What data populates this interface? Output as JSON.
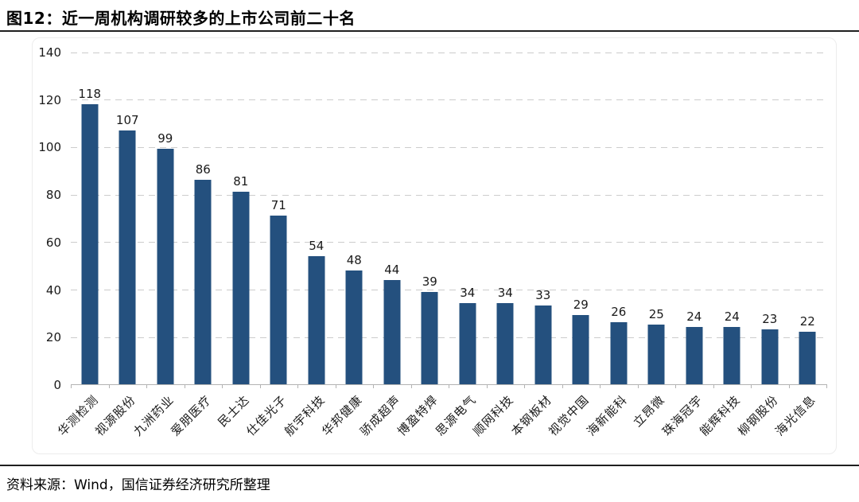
{
  "header": {
    "title": "图12：近一周机构调研较多的上市公司前二十名"
  },
  "footer": {
    "source": "资料来源：Wind，国信证券经济研究所整理"
  },
  "colors": {
    "bar": "#24507E",
    "gridline": "#cccccc",
    "axis_line": "#b3b3b3",
    "rule": "#1f1f1f",
    "text": "#1a1a1a"
  },
  "chart_data": {
    "type": "bar",
    "title": "近一周机构调研较多的上市公司前二十名",
    "categories": [
      "华测检测",
      "视源股份",
      "九洲药业",
      "爱朋医疗",
      "民士达",
      "仕佳光子",
      "航宇科技",
      "华邦健康",
      "骄成超声",
      "博盈特焊",
      "思源电气",
      "顺网科技",
      "本钢板材",
      "视觉中国",
      "海新能科",
      "立昂微",
      "珠海冠宇",
      "能辉科技",
      "柳钢股份",
      "海光信息"
    ],
    "values": [
      118,
      107,
      99,
      86,
      81,
      71,
      54,
      48,
      44,
      39,
      34,
      34,
      33,
      29,
      26,
      25,
      24,
      24,
      23,
      22
    ],
    "value_labels_shown": true,
    "xlabel": "",
    "ylabel": "",
    "ylim": [
      0,
      140
    ],
    "yticks": [
      0,
      20,
      40,
      60,
      80,
      100,
      120,
      140
    ],
    "grid": "horizontal-dashed",
    "legend": "none",
    "bar_color": "#24507E"
  }
}
